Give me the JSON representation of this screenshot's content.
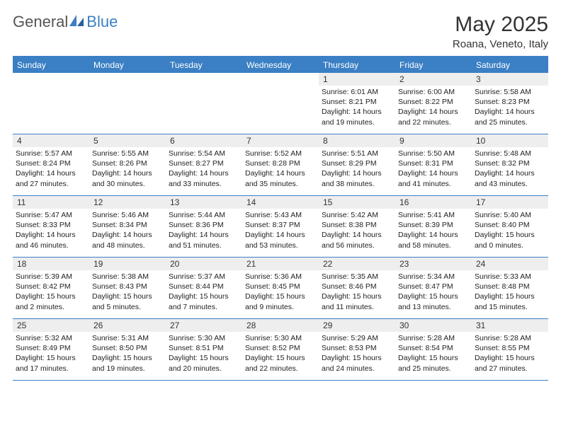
{
  "logo": {
    "general": "General",
    "blue": "Blue"
  },
  "title": "May 2025",
  "location": "Roana, Veneto, Italy",
  "colors": {
    "accent": "#3b7fc4",
    "dayrow_bg": "#eeeeee",
    "text": "#333333",
    "background": "#ffffff",
    "logo_gray": "#555555"
  },
  "day_headers": [
    "Sunday",
    "Monday",
    "Tuesday",
    "Wednesday",
    "Thursday",
    "Friday",
    "Saturday"
  ],
  "weeks": [
    [
      {
        "empty": true
      },
      {
        "empty": true
      },
      {
        "empty": true
      },
      {
        "empty": true
      },
      {
        "day": "1",
        "sunrise": "Sunrise: 6:01 AM",
        "sunset": "Sunset: 8:21 PM",
        "daylight1": "Daylight: 14 hours",
        "daylight2": "and 19 minutes."
      },
      {
        "day": "2",
        "sunrise": "Sunrise: 6:00 AM",
        "sunset": "Sunset: 8:22 PM",
        "daylight1": "Daylight: 14 hours",
        "daylight2": "and 22 minutes."
      },
      {
        "day": "3",
        "sunrise": "Sunrise: 5:58 AM",
        "sunset": "Sunset: 8:23 PM",
        "daylight1": "Daylight: 14 hours",
        "daylight2": "and 25 minutes."
      }
    ],
    [
      {
        "day": "4",
        "sunrise": "Sunrise: 5:57 AM",
        "sunset": "Sunset: 8:24 PM",
        "daylight1": "Daylight: 14 hours",
        "daylight2": "and 27 minutes."
      },
      {
        "day": "5",
        "sunrise": "Sunrise: 5:55 AM",
        "sunset": "Sunset: 8:26 PM",
        "daylight1": "Daylight: 14 hours",
        "daylight2": "and 30 minutes."
      },
      {
        "day": "6",
        "sunrise": "Sunrise: 5:54 AM",
        "sunset": "Sunset: 8:27 PM",
        "daylight1": "Daylight: 14 hours",
        "daylight2": "and 33 minutes."
      },
      {
        "day": "7",
        "sunrise": "Sunrise: 5:52 AM",
        "sunset": "Sunset: 8:28 PM",
        "daylight1": "Daylight: 14 hours",
        "daylight2": "and 35 minutes."
      },
      {
        "day": "8",
        "sunrise": "Sunrise: 5:51 AM",
        "sunset": "Sunset: 8:29 PM",
        "daylight1": "Daylight: 14 hours",
        "daylight2": "and 38 minutes."
      },
      {
        "day": "9",
        "sunrise": "Sunrise: 5:50 AM",
        "sunset": "Sunset: 8:31 PM",
        "daylight1": "Daylight: 14 hours",
        "daylight2": "and 41 minutes."
      },
      {
        "day": "10",
        "sunrise": "Sunrise: 5:48 AM",
        "sunset": "Sunset: 8:32 PM",
        "daylight1": "Daylight: 14 hours",
        "daylight2": "and 43 minutes."
      }
    ],
    [
      {
        "day": "11",
        "sunrise": "Sunrise: 5:47 AM",
        "sunset": "Sunset: 8:33 PM",
        "daylight1": "Daylight: 14 hours",
        "daylight2": "and 46 minutes."
      },
      {
        "day": "12",
        "sunrise": "Sunrise: 5:46 AM",
        "sunset": "Sunset: 8:34 PM",
        "daylight1": "Daylight: 14 hours",
        "daylight2": "and 48 minutes."
      },
      {
        "day": "13",
        "sunrise": "Sunrise: 5:44 AM",
        "sunset": "Sunset: 8:36 PM",
        "daylight1": "Daylight: 14 hours",
        "daylight2": "and 51 minutes."
      },
      {
        "day": "14",
        "sunrise": "Sunrise: 5:43 AM",
        "sunset": "Sunset: 8:37 PM",
        "daylight1": "Daylight: 14 hours",
        "daylight2": "and 53 minutes."
      },
      {
        "day": "15",
        "sunrise": "Sunrise: 5:42 AM",
        "sunset": "Sunset: 8:38 PM",
        "daylight1": "Daylight: 14 hours",
        "daylight2": "and 56 minutes."
      },
      {
        "day": "16",
        "sunrise": "Sunrise: 5:41 AM",
        "sunset": "Sunset: 8:39 PM",
        "daylight1": "Daylight: 14 hours",
        "daylight2": "and 58 minutes."
      },
      {
        "day": "17",
        "sunrise": "Sunrise: 5:40 AM",
        "sunset": "Sunset: 8:40 PM",
        "daylight1": "Daylight: 15 hours",
        "daylight2": "and 0 minutes."
      }
    ],
    [
      {
        "day": "18",
        "sunrise": "Sunrise: 5:39 AM",
        "sunset": "Sunset: 8:42 PM",
        "daylight1": "Daylight: 15 hours",
        "daylight2": "and 2 minutes."
      },
      {
        "day": "19",
        "sunrise": "Sunrise: 5:38 AM",
        "sunset": "Sunset: 8:43 PM",
        "daylight1": "Daylight: 15 hours",
        "daylight2": "and 5 minutes."
      },
      {
        "day": "20",
        "sunrise": "Sunrise: 5:37 AM",
        "sunset": "Sunset: 8:44 PM",
        "daylight1": "Daylight: 15 hours",
        "daylight2": "and 7 minutes."
      },
      {
        "day": "21",
        "sunrise": "Sunrise: 5:36 AM",
        "sunset": "Sunset: 8:45 PM",
        "daylight1": "Daylight: 15 hours",
        "daylight2": "and 9 minutes."
      },
      {
        "day": "22",
        "sunrise": "Sunrise: 5:35 AM",
        "sunset": "Sunset: 8:46 PM",
        "daylight1": "Daylight: 15 hours",
        "daylight2": "and 11 minutes."
      },
      {
        "day": "23",
        "sunrise": "Sunrise: 5:34 AM",
        "sunset": "Sunset: 8:47 PM",
        "daylight1": "Daylight: 15 hours",
        "daylight2": "and 13 minutes."
      },
      {
        "day": "24",
        "sunrise": "Sunrise: 5:33 AM",
        "sunset": "Sunset: 8:48 PM",
        "daylight1": "Daylight: 15 hours",
        "daylight2": "and 15 minutes."
      }
    ],
    [
      {
        "day": "25",
        "sunrise": "Sunrise: 5:32 AM",
        "sunset": "Sunset: 8:49 PM",
        "daylight1": "Daylight: 15 hours",
        "daylight2": "and 17 minutes."
      },
      {
        "day": "26",
        "sunrise": "Sunrise: 5:31 AM",
        "sunset": "Sunset: 8:50 PM",
        "daylight1": "Daylight: 15 hours",
        "daylight2": "and 19 minutes."
      },
      {
        "day": "27",
        "sunrise": "Sunrise: 5:30 AM",
        "sunset": "Sunset: 8:51 PM",
        "daylight1": "Daylight: 15 hours",
        "daylight2": "and 20 minutes."
      },
      {
        "day": "28",
        "sunrise": "Sunrise: 5:30 AM",
        "sunset": "Sunset: 8:52 PM",
        "daylight1": "Daylight: 15 hours",
        "daylight2": "and 22 minutes."
      },
      {
        "day": "29",
        "sunrise": "Sunrise: 5:29 AM",
        "sunset": "Sunset: 8:53 PM",
        "daylight1": "Daylight: 15 hours",
        "daylight2": "and 24 minutes."
      },
      {
        "day": "30",
        "sunrise": "Sunrise: 5:28 AM",
        "sunset": "Sunset: 8:54 PM",
        "daylight1": "Daylight: 15 hours",
        "daylight2": "and 25 minutes."
      },
      {
        "day": "31",
        "sunrise": "Sunrise: 5:28 AM",
        "sunset": "Sunset: 8:55 PM",
        "daylight1": "Daylight: 15 hours",
        "daylight2": "and 27 minutes."
      }
    ]
  ]
}
